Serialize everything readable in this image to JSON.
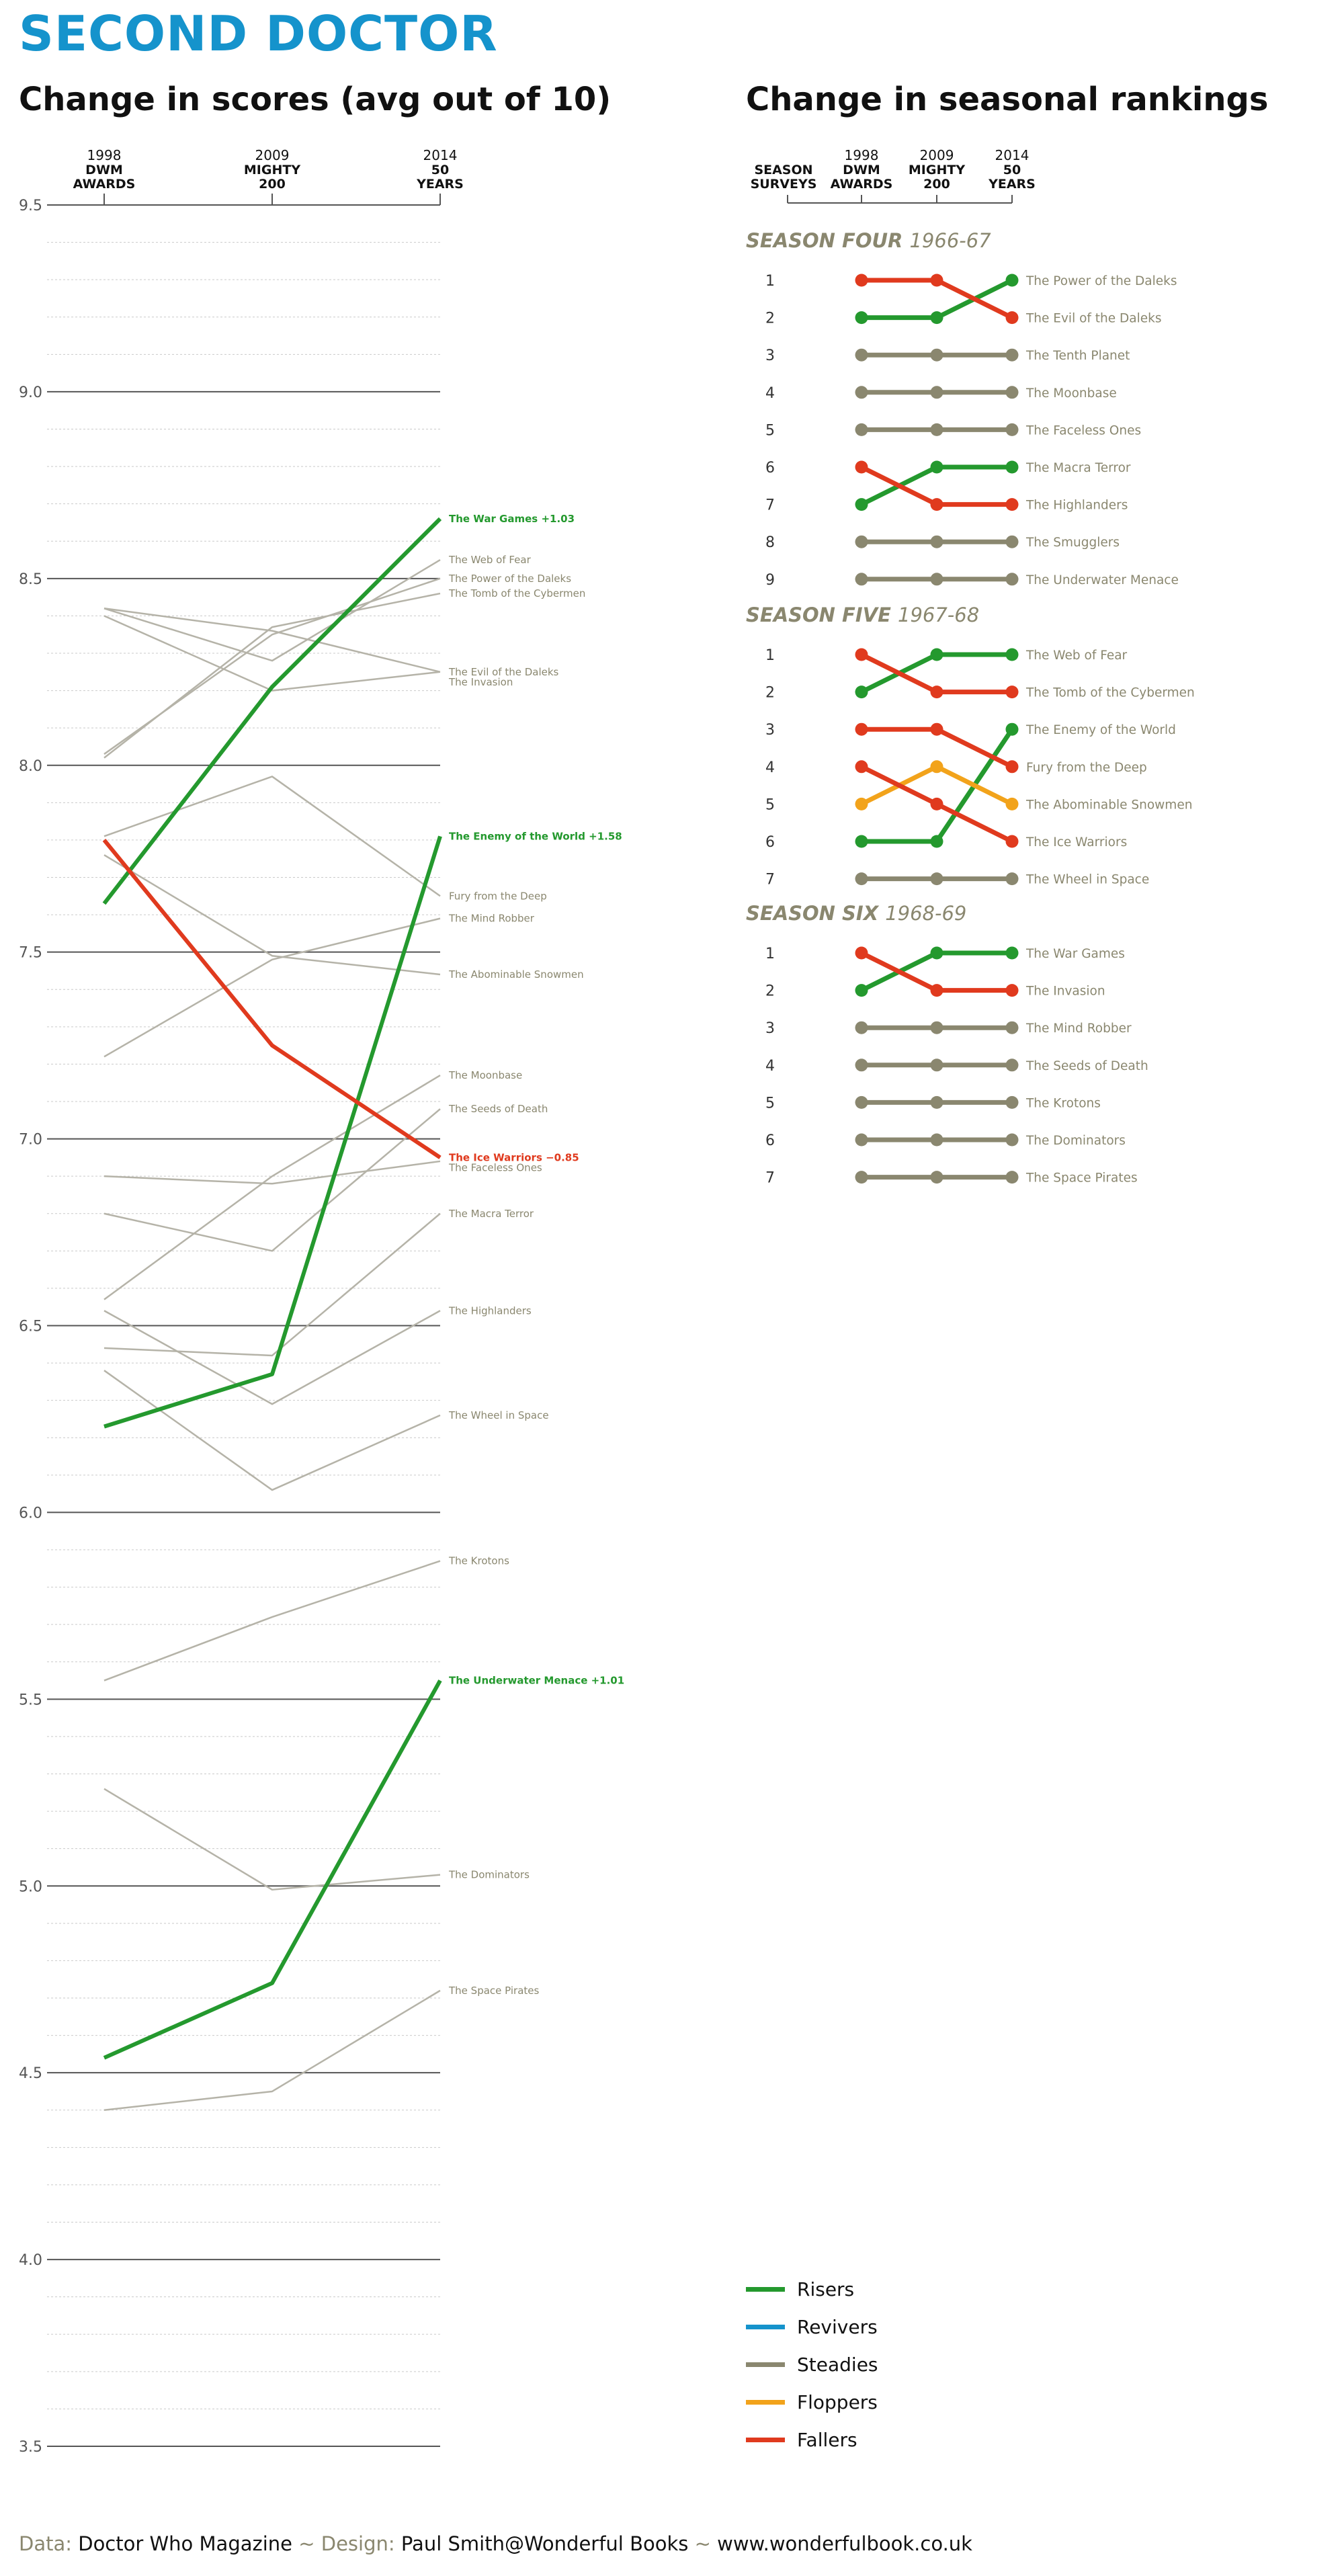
{
  "title": "SECOND DOCTOR",
  "colors": {
    "risers": "#24992e",
    "revivers": "#1593cc",
    "steadies": "#8a876f",
    "floppers": "#f2a31b",
    "fallers": "#e03a1e",
    "gray_line": "#b5b3a8"
  },
  "left_chart": {
    "heading": "Change in scores (avg out of 10)",
    "survey_columns": [
      {
        "year": "1998",
        "line1": "DWM",
        "line2": "AWARDS"
      },
      {
        "year": "2009",
        "line1": "MIGHTY",
        "line2": "200"
      },
      {
        "year": "2014",
        "line1": "50",
        "line2": "YEARS"
      }
    ],
    "y_ticks": [
      "9.5",
      "9.0",
      "8.5",
      "8.0",
      "7.5",
      "7.0",
      "6.5",
      "6.0",
      "5.5",
      "5.0",
      "4.5",
      "4.0",
      "3.5"
    ]
  },
  "right_chart": {
    "heading": "Change in seasonal rankings",
    "season_survey_label": [
      "SEASON",
      "SURVEYS"
    ],
    "survey_columns": [
      {
        "year": "1998",
        "line1": "DWM",
        "line2": "AWARDS"
      },
      {
        "year": "2009",
        "line1": "MIGHTY",
        "line2": "200"
      },
      {
        "year": "2014",
        "line1": "50",
        "line2": "YEARS"
      }
    ]
  },
  "chart_data": [
    {
      "type": "line",
      "title": "Change in scores (avg out of 10)",
      "x": [
        "1998 DWM AWARDS",
        "2009 MIGHTY 200",
        "2014 50 YEARS"
      ],
      "ylim": [
        3.5,
        9.5
      ],
      "grid": true,
      "series": [
        {
          "name": "The War Games",
          "values": [
            7.63,
            8.21,
            8.66
          ],
          "label": "The War Games +1.03",
          "category": "risers"
        },
        {
          "name": "The Enemy of the World",
          "values": [
            6.23,
            6.37,
            7.81
          ],
          "label": "The Enemy of the World +1.58",
          "category": "risers"
        },
        {
          "name": "The Underwater Menace",
          "values": [
            4.54,
            4.74,
            5.55
          ],
          "label": "The Underwater Menace +1.01",
          "category": "risers"
        },
        {
          "name": "The Ice Warriors",
          "values": [
            7.8,
            7.25,
            6.95
          ],
          "label": "The Ice Warriors −0.85",
          "category": "fallers"
        },
        {
          "name": "The Web of Fear",
          "values": [
            8.42,
            8.28,
            8.55
          ],
          "label": "The Web of Fear",
          "category": "other"
        },
        {
          "name": "The Power of the Daleks",
          "values": [
            8.03,
            8.35,
            8.5
          ],
          "label": "The Power of the Daleks",
          "category": "other"
        },
        {
          "name": "The Tomb of the Cybermen",
          "values": [
            8.02,
            8.37,
            8.46
          ],
          "label": "The Tomb of the Cybermen",
          "category": "other"
        },
        {
          "name": "The Evil of the Daleks",
          "values": [
            8.42,
            8.36,
            8.25
          ],
          "label": "The Evil of the Daleks",
          "category": "other"
        },
        {
          "name": "The Invasion",
          "values": [
            8.4,
            8.2,
            8.25
          ],
          "label": "The Invasion",
          "category": "other"
        },
        {
          "name": "Fury from the Deep",
          "values": [
            7.81,
            7.97,
            7.65
          ],
          "label": "Fury from the Deep",
          "category": "other"
        },
        {
          "name": "The Mind Robber",
          "values": [
            7.22,
            7.48,
            7.59
          ],
          "label": "The Mind Robber",
          "category": "other"
        },
        {
          "name": "The Abominable Snowmen",
          "values": [
            7.76,
            7.49,
            7.44
          ],
          "label": "The Abominable Snowmen",
          "category": "other"
        },
        {
          "name": "The Moonbase",
          "values": [
            6.57,
            6.9,
            7.17
          ],
          "label": "The Moonbase",
          "category": "other"
        },
        {
          "name": "The Seeds of Death",
          "values": [
            6.8,
            6.7,
            7.08
          ],
          "label": "The Seeds of Death",
          "category": "other"
        },
        {
          "name": "The Faceless Ones",
          "values": [
            6.9,
            6.88,
            6.94
          ],
          "label": "The Faceless Ones",
          "category": "other"
        },
        {
          "name": "The Macra Terror",
          "values": [
            6.44,
            6.42,
            6.8
          ],
          "label": "The Macra Terror",
          "category": "other"
        },
        {
          "name": "The Highlanders",
          "values": [
            6.54,
            6.29,
            6.54
          ],
          "label": "The Highlanders",
          "category": "other"
        },
        {
          "name": "The Wheel in Space",
          "values": [
            6.38,
            6.06,
            6.26
          ],
          "label": "The Wheel in Space",
          "category": "other"
        },
        {
          "name": "The Krotons",
          "values": [
            5.55,
            5.72,
            5.87
          ],
          "label": "The Krotons",
          "category": "other"
        },
        {
          "name": "The Dominators",
          "values": [
            5.26,
            4.99,
            5.03
          ],
          "label": "The Dominators",
          "category": "other"
        },
        {
          "name": "The Space Pirates",
          "values": [
            4.4,
            4.45,
            4.72
          ],
          "label": "The Space Pirates",
          "category": "other"
        }
      ]
    },
    {
      "type": "line",
      "title": "Change in seasonal rankings",
      "x": [
        "1998 DWM AWARDS",
        "2009 MIGHTY 200",
        "2014 50 YEARS"
      ],
      "seasons": [
        {
          "name": "SEASON FOUR",
          "years": "1966-67",
          "ranks": [
            "1",
            "2",
            "3",
            "4",
            "5",
            "6",
            "7",
            "8",
            "9"
          ],
          "stories": [
            {
              "name": "The Power of the Daleks",
              "ranks": [
                2,
                2,
                1
              ],
              "category": "risers"
            },
            {
              "name": "The Evil of the Daleks",
              "ranks": [
                1,
                1,
                2
              ],
              "category": "fallers"
            },
            {
              "name": "The Tenth Planet",
              "ranks": [
                3,
                3,
                3
              ],
              "category": "steadies"
            },
            {
              "name": "The Moonbase",
              "ranks": [
                4,
                4,
                4
              ],
              "category": "steadies"
            },
            {
              "name": "The Faceless Ones",
              "ranks": [
                5,
                5,
                5
              ],
              "category": "steadies"
            },
            {
              "name": "The Macra Terror",
              "ranks": [
                7,
                6,
                6
              ],
              "category": "risers"
            },
            {
              "name": "The Highlanders",
              "ranks": [
                6,
                7,
                7
              ],
              "category": "fallers"
            },
            {
              "name": "The Smugglers",
              "ranks": [
                8,
                8,
                8
              ],
              "category": "steadies"
            },
            {
              "name": "The Underwater Menace",
              "ranks": [
                9,
                9,
                9
              ],
              "category": "steadies"
            }
          ]
        },
        {
          "name": "SEASON FIVE",
          "years": "1967-68",
          "ranks": [
            "1",
            "2",
            "3",
            "4",
            "5",
            "6",
            "7"
          ],
          "stories": [
            {
              "name": "The Web of Fear",
              "ranks": [
                2,
                1,
                1
              ],
              "category": "risers"
            },
            {
              "name": "The Tomb of the Cybermen",
              "ranks": [
                1,
                2,
                2
              ],
              "category": "fallers"
            },
            {
              "name": "The Enemy of the World",
              "ranks": [
                6,
                6,
                3
              ],
              "category": "risers"
            },
            {
              "name": "Fury from the Deep",
              "ranks": [
                3,
                3,
                4
              ],
              "category": "fallers"
            },
            {
              "name": "The Abominable Snowmen",
              "ranks": [
                5,
                4,
                5
              ],
              "category": "floppers"
            },
            {
              "name": "The Ice Warriors",
              "ranks": [
                4,
                5,
                6
              ],
              "category": "fallers"
            },
            {
              "name": "The Wheel in Space",
              "ranks": [
                7,
                7,
                7
              ],
              "category": "steadies"
            }
          ]
        },
        {
          "name": "SEASON SIX",
          "years": "1968-69",
          "ranks": [
            "1",
            "2",
            "3",
            "4",
            "5",
            "6",
            "7"
          ],
          "stories": [
            {
              "name": "The War Games",
              "ranks": [
                2,
                1,
                1
              ],
              "category": "risers"
            },
            {
              "name": "The Invasion",
              "ranks": [
                1,
                2,
                2
              ],
              "category": "fallers"
            },
            {
              "name": "The Mind Robber",
              "ranks": [
                3,
                3,
                3
              ],
              "category": "steadies"
            },
            {
              "name": "The Seeds of Death",
              "ranks": [
                4,
                4,
                4
              ],
              "category": "steadies"
            },
            {
              "name": "The Krotons",
              "ranks": [
                5,
                5,
                5
              ],
              "category": "steadies"
            },
            {
              "name": "The Dominators",
              "ranks": [
                6,
                6,
                6
              ],
              "category": "steadies"
            },
            {
              "name": "The Space Pirates",
              "ranks": [
                7,
                7,
                7
              ],
              "category": "steadies"
            }
          ]
        }
      ]
    }
  ],
  "legend": [
    {
      "label": "Risers",
      "color": "#24992e"
    },
    {
      "label": "Revivers",
      "color": "#1593cc"
    },
    {
      "label": "Steadies",
      "color": "#8a876f"
    },
    {
      "label": "Floppers",
      "color": "#f2a31b"
    },
    {
      "label": "Fallers",
      "color": "#e03a1e"
    }
  ],
  "footer": {
    "data_key": "Data:",
    "data_value": "Doctor Who Magazine",
    "sep1": "~",
    "design_key": "Design:",
    "design_value": "Paul Smith@Wonderful Books",
    "sep2": "~",
    "url": "www.wonderfulbook.co.uk"
  }
}
